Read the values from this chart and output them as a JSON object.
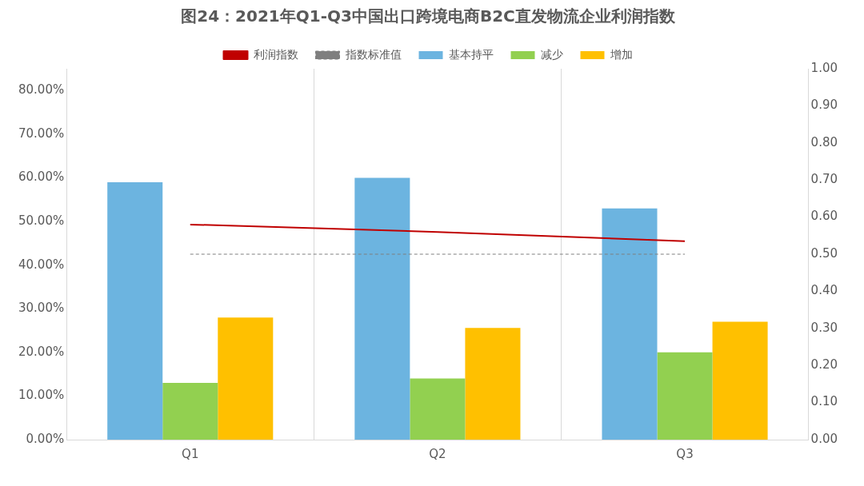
{
  "chart_data": {
    "type": "bar",
    "title": "图24：2021年Q1-Q3中国出口跨境电商B2C直发物流企业利润指数",
    "categories": [
      "Q1",
      "Q2",
      "Q3"
    ],
    "series": [
      {
        "name": "基本持平",
        "color": "#6cb4e0",
        "values": [
          59,
          60,
          53
        ]
      },
      {
        "name": "减少",
        "color": "#92d050",
        "values": [
          13,
          14,
          20
        ]
      },
      {
        "name": "增加",
        "color": "#ffc000",
        "values": [
          28,
          25.6,
          27
        ]
      },
      {
        "name": "利润指数",
        "type": "line",
        "axis": "y2",
        "color": "#c00000",
        "values": [
          0.58,
          0.56,
          0.535
        ]
      },
      {
        "name": "指数标准值",
        "type": "line",
        "axis": "y2",
        "line_style": "dashed",
        "color": "#7f7f7f",
        "values": [
          0.5,
          0.5,
          0.5
        ]
      }
    ],
    "ylim": [
      0,
      85
    ],
    "yticks": [
      {
        "value": 0,
        "label": "0.00%"
      },
      {
        "value": 10,
        "label": "10.00%"
      },
      {
        "value": 20,
        "label": "20.00%"
      },
      {
        "value": 30,
        "label": "30.00%"
      },
      {
        "value": 40,
        "label": "40.00%"
      },
      {
        "value": 50,
        "label": "50.00%"
      },
      {
        "value": 60,
        "label": "60.00%"
      },
      {
        "value": 70,
        "label": "70.00%"
      },
      {
        "value": 80,
        "label": "80.00%"
      }
    ],
    "y2lim": [
      0,
      1
    ],
    "y2ticks": [
      {
        "value": 0,
        "label": "0.00"
      },
      {
        "value": 0.1,
        "label": "0.10"
      },
      {
        "value": 0.2,
        "label": "0.20"
      },
      {
        "value": 0.3,
        "label": "0.30"
      },
      {
        "value": 0.4,
        "label": "0.40"
      },
      {
        "value": 0.5,
        "label": "0.50"
      },
      {
        "value": 0.6,
        "label": "0.60"
      },
      {
        "value": 0.7,
        "label": "0.70"
      },
      {
        "value": 0.8,
        "label": "0.80"
      },
      {
        "value": 0.9,
        "label": "0.90"
      },
      {
        "value": 1,
        "label": "1.00"
      }
    ],
    "grid": "x",
    "legend": "top",
    "marker": "none"
  }
}
